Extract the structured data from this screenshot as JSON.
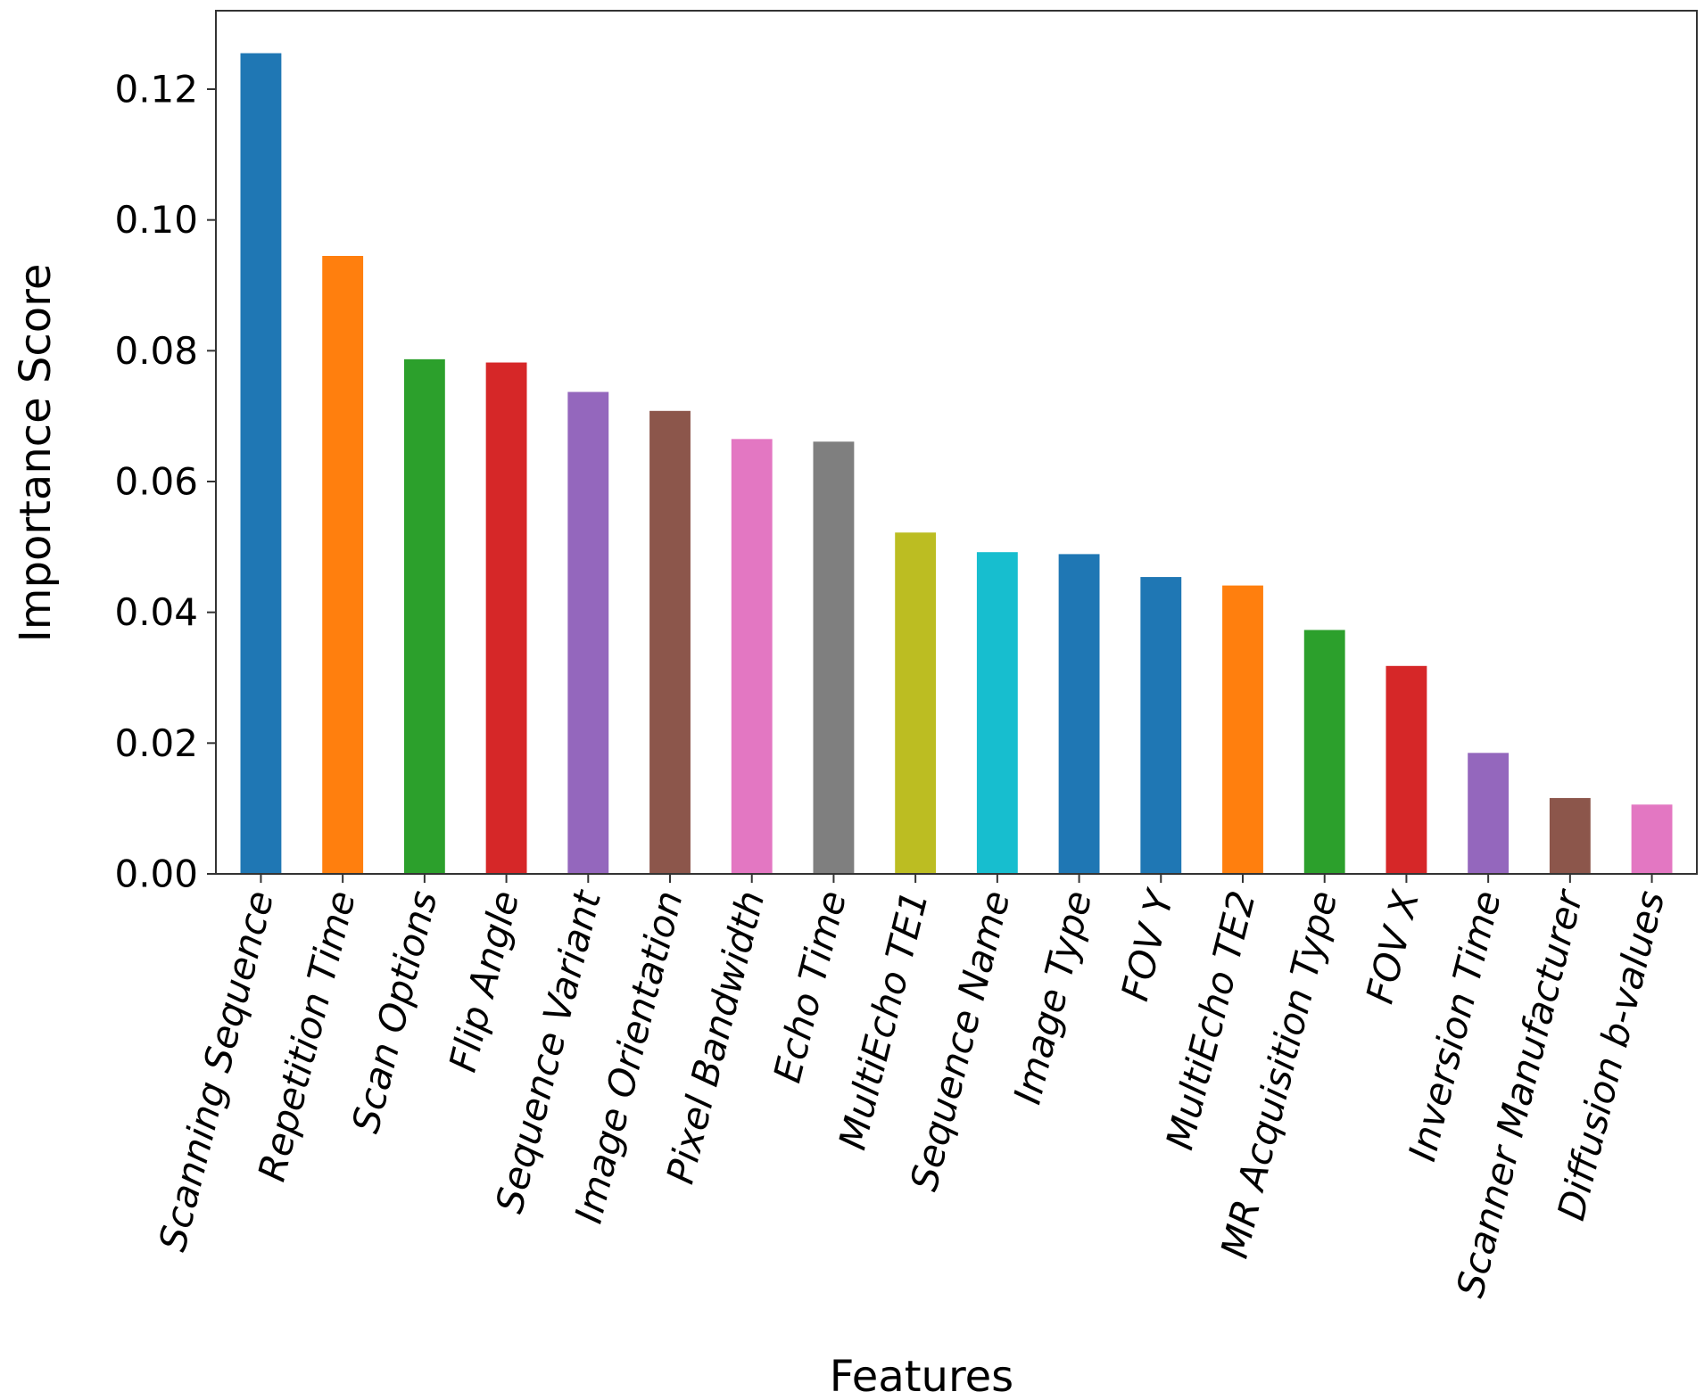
{
  "chart_data": {
    "type": "bar",
    "title": "",
    "xlabel": "Features",
    "ylabel": "Importance Score",
    "ylim": [
      0,
      0.132
    ],
    "yticks": [
      "0.00",
      "0.02",
      "0.04",
      "0.06",
      "0.08",
      "0.10",
      "0.12"
    ],
    "grid": false,
    "legend": "none",
    "categories": [
      "Scanning Sequence",
      "Repetition Time",
      "Scan Options",
      "Flip Angle",
      "Sequence Variant",
      "Image Orientation",
      "Pixel Bandwidth",
      "Echo Time",
      "MultiEcho TE1",
      "Sequence Name",
      "Image Type",
      "FOV Y",
      "MultiEcho TE2",
      "MR Acquisition Type",
      "FOV X",
      "Inversion Time",
      "Scanner Manufacturer",
      "Diffusion b-values"
    ],
    "values": [
      0.1255,
      0.0945,
      0.0787,
      0.0782,
      0.0737,
      0.0708,
      0.0665,
      0.0661,
      0.0522,
      0.0492,
      0.0489,
      0.0454,
      0.0441,
      0.0373,
      0.0318,
      0.0185,
      0.0116,
      0.0106
    ],
    "colors": [
      "#1f77b4",
      "#ff7f0e",
      "#2ca02c",
      "#d62728",
      "#9467bd",
      "#8c564b",
      "#e377c2",
      "#7f7f7f",
      "#bcbd22",
      "#17becf",
      "#1f77b4",
      "#1f77b4",
      "#ff7f0e",
      "#2ca02c",
      "#d62728",
      "#9467bd",
      "#8c564b",
      "#e377c2"
    ]
  }
}
